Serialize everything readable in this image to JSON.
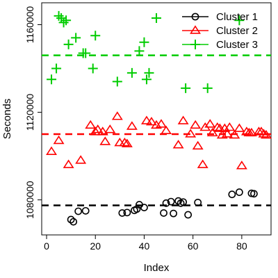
{
  "chart_data": {
    "type": "scatter",
    "xlabel": "Index",
    "ylabel": "Seconds",
    "xlim": [
      -2,
      92
    ],
    "ylim": [
      1064000,
      1170000
    ],
    "x_ticks": [
      0,
      20,
      40,
      60,
      80
    ],
    "x_tick_labels": [
      "0",
      "20",
      "40",
      "60",
      "80"
    ],
    "y_ticks": [
      1080000,
      1120000,
      1160000
    ],
    "y_tick_labels": [
      "1080000",
      "1120000",
      "1160000"
    ],
    "grid": false,
    "legend_position": "top-right",
    "series": [
      {
        "name": "Cluster 1",
        "marker": "circle",
        "color": "#000000",
        "mean": 1077500,
        "points": [
          [
            10,
            1071000
          ],
          [
            11,
            1070000
          ],
          [
            13,
            1074800
          ],
          [
            16,
            1075000
          ],
          [
            31,
            1074000
          ],
          [
            33,
            1074200
          ],
          [
            36,
            1075200
          ],
          [
            37,
            1075800
          ],
          [
            38,
            1077800
          ],
          [
            40,
            1076500
          ],
          [
            48,
            1074000
          ],
          [
            49,
            1078500
          ],
          [
            51,
            1079200
          ],
          [
            52,
            1073800
          ],
          [
            54,
            1079500
          ],
          [
            55,
            1078500
          ],
          [
            56,
            1079000
          ],
          [
            58,
            1073200
          ],
          [
            62,
            1078800
          ],
          [
            76,
            1082500
          ],
          [
            79,
            1083500
          ],
          [
            84,
            1083000
          ],
          [
            85,
            1082800
          ]
        ]
      },
      {
        "name": "Cluster 2",
        "marker": "triangle",
        "color": "#ff0000",
        "mean": 1110000,
        "points": [
          [
            2,
            1102000
          ],
          [
            5,
            1107000
          ],
          [
            9,
            1096000
          ],
          [
            14,
            1098000
          ],
          [
            18,
            1114000
          ],
          [
            20,
            1111000
          ],
          [
            21,
            1112000
          ],
          [
            23,
            1111000
          ],
          [
            24,
            1106500
          ],
          [
            26,
            1112000
          ],
          [
            29,
            1118000
          ],
          [
            30,
            1106000
          ],
          [
            32,
            1106000
          ],
          [
            33,
            1105500
          ],
          [
            35,
            1113500
          ],
          [
            41,
            1116000
          ],
          [
            43,
            1115500
          ],
          [
            45,
            1114000
          ],
          [
            47,
            1114500
          ],
          [
            49,
            1111500
          ],
          [
            54,
            1105000
          ],
          [
            56,
            1116000
          ],
          [
            59,
            1110000
          ],
          [
            61,
            1114000
          ],
          [
            62,
            1104500
          ],
          [
            64,
            1096000
          ],
          [
            65,
            1113000
          ],
          [
            67,
            1114500
          ],
          [
            68,
            1110500
          ],
          [
            70,
            1113000
          ],
          [
            71,
            1112500
          ],
          [
            72,
            1109500
          ],
          [
            73,
            1112500
          ],
          [
            74,
            1110000
          ],
          [
            75,
            1113000
          ],
          [
            77,
            1109500
          ],
          [
            79,
            1112500
          ],
          [
            80,
            1095500
          ],
          [
            82,
            1111000
          ],
          [
            83,
            1110500
          ],
          [
            84,
            1110500
          ],
          [
            87,
            1111000
          ],
          [
            88,
            1111000
          ],
          [
            89,
            1110000
          ],
          [
            90,
            1109500
          ]
        ]
      },
      {
        "name": "Cluster 3",
        "marker": "plus",
        "color": "#00cc00",
        "mean": 1146000,
        "points": [
          [
            2,
            1135000
          ],
          [
            4,
            1140000
          ],
          [
            5,
            1164000
          ],
          [
            6,
            1163000
          ],
          [
            7,
            1161000
          ],
          [
            8,
            1162000
          ],
          [
            9,
            1151000
          ],
          [
            12,
            1154000
          ],
          [
            15,
            1147000
          ],
          [
            16,
            1147000
          ],
          [
            19,
            1140000
          ],
          [
            20,
            1155000
          ],
          [
            29,
            1134000
          ],
          [
            35,
            1138000
          ],
          [
            38,
            1148000
          ],
          [
            40,
            1152000
          ],
          [
            41,
            1135000
          ],
          [
            42,
            1138000
          ],
          [
            45,
            1163000
          ],
          [
            57,
            1131000
          ],
          [
            66,
            1131000
          ],
          [
            79,
            1162000
          ]
        ]
      }
    ]
  }
}
